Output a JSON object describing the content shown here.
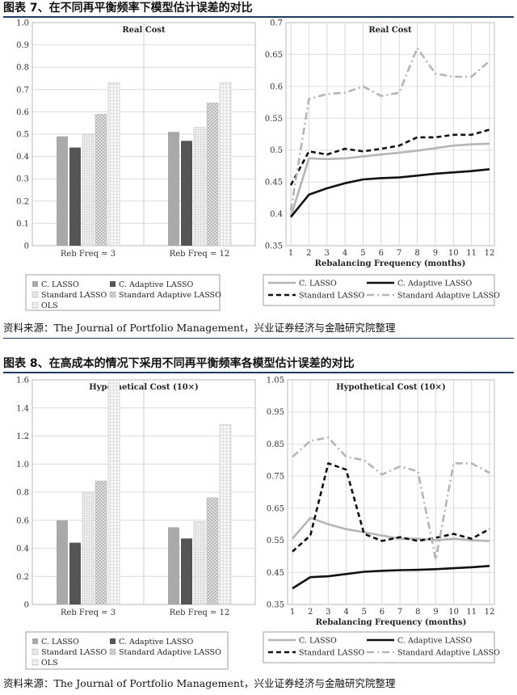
{
  "figures": [
    {
      "title": "图表 7、在不同再平衡频率下模型估计误差的对比",
      "source": "资料来源：The Journal of Portfolio Management，兴业证券经济与金融研究院整理"
    },
    {
      "title": "图表 8、在高成本的情况下采用不同再平衡频率各模型估计误差的对比",
      "source": "资料来源：The Journal of Portfolio Management，兴业证券经济与金融研究院整理"
    }
  ],
  "chart_data": [
    {
      "type": "bar",
      "title": "Real Cost",
      "categories": [
        "Reb Freq = 3",
        "Reb Freq = 12"
      ],
      "ylim": [
        0,
        1.0
      ],
      "yticks": [
        "0",
        "0.1",
        "0.2",
        "0.3",
        "0.4",
        "0.5",
        "0.6",
        "0.7",
        "0.8",
        "0.9",
        "1.0"
      ],
      "grid": true,
      "legend_position": "bottom",
      "series": [
        {
          "name": "C. LASSO",
          "values": [
            0.49,
            0.51
          ],
          "color": "#a9a9a9"
        },
        {
          "name": "C. Adaptive LASSO",
          "values": [
            0.44,
            0.47
          ],
          "color": "#5a5a5a"
        },
        {
          "name": "Standard LASSO",
          "values": [
            0.5,
            0.53
          ],
          "color": "#e2e2e2"
        },
        {
          "name": "Standard Adaptive LASSO",
          "values": [
            0.59,
            0.64
          ],
          "color": "#cfcfcf"
        },
        {
          "name": "OLS",
          "values": [
            0.73,
            0.73
          ],
          "color": "#f2f2f2"
        }
      ]
    },
    {
      "type": "line",
      "title": "Real Cost",
      "xlabel": "Rebalancing Frequency (months)",
      "x": [
        1,
        2,
        3,
        4,
        5,
        6,
        7,
        8,
        9,
        10,
        11,
        12
      ],
      "ylim": [
        0.35,
        0.7
      ],
      "yticks": [
        "0.35",
        "0.4",
        "0.45",
        "0.5",
        "0.55",
        "0.6",
        "0.65",
        "0.7"
      ],
      "grid": true,
      "legend_position": "bottom",
      "series": [
        {
          "name": "C. LASSO",
          "values": [
            0.395,
            0.487,
            0.486,
            0.487,
            0.49,
            0.493,
            0.496,
            0.499,
            0.503,
            0.507,
            0.509,
            0.51
          ],
          "color": "#b5b5b5",
          "style": "solid"
        },
        {
          "name": "C. Adaptive LASSO",
          "values": [
            0.395,
            0.43,
            0.44,
            0.448,
            0.454,
            0.456,
            0.457,
            0.46,
            0.463,
            0.465,
            0.467,
            0.47
          ],
          "color": "#111111",
          "style": "solid"
        },
        {
          "name": "Standard LASSO",
          "values": [
            0.445,
            0.498,
            0.493,
            0.502,
            0.498,
            0.502,
            0.507,
            0.52,
            0.52,
            0.524,
            0.524,
            0.532
          ],
          "color": "#111111",
          "style": "dash"
        },
        {
          "name": "Standard Adaptive LASSO",
          "values": [
            0.405,
            0.58,
            0.588,
            0.59,
            0.6,
            0.585,
            0.59,
            0.66,
            0.62,
            0.615,
            0.615,
            0.64
          ],
          "color": "#b5b5b5",
          "style": "dashdot"
        }
      ]
    },
    {
      "type": "bar",
      "title": "Hypothetical Cost (10×)",
      "categories": [
        "Reb Freq = 3",
        "Reb Freq = 12"
      ],
      "ylim": [
        0,
        1.6
      ],
      "yticks": [
        "0",
        "0.2",
        "0.4",
        "0.6",
        "0.8",
        "1.0",
        "1.2",
        "1.4",
        "1.6"
      ],
      "grid": true,
      "legend_position": "bottom",
      "series": [
        {
          "name": "C. LASSO",
          "values": [
            0.6,
            0.55
          ],
          "color": "#a9a9a9"
        },
        {
          "name": "C. Adaptive LASSO",
          "values": [
            0.44,
            0.47
          ],
          "color": "#5a5a5a"
        },
        {
          "name": "Standard LASSO",
          "values": [
            0.8,
            0.59
          ],
          "color": "#e2e2e2"
        },
        {
          "name": "Standard Adaptive LASSO",
          "values": [
            0.88,
            0.76
          ],
          "color": "#cfcfcf"
        },
        {
          "name": "OLS",
          "values": [
            1.62,
            1.28
          ],
          "color": "#f2f2f2"
        }
      ]
    },
    {
      "type": "line",
      "title": "Hypothetical Cost (10×)",
      "xlabel": "Rebalancing Frequency (months)",
      "x": [
        1,
        2,
        3,
        4,
        5,
        6,
        7,
        8,
        9,
        10,
        11,
        12
      ],
      "ylim": [
        0.35,
        1.05
      ],
      "yticks": [
        "0.35",
        "0.45",
        "0.55",
        "0.65",
        "0.75",
        "0.85",
        "0.95",
        "1.05"
      ],
      "grid": true,
      "legend_position": "bottom",
      "series": [
        {
          "name": "C. LASSO",
          "values": [
            0.555,
            0.62,
            0.6,
            0.585,
            0.575,
            0.565,
            0.555,
            0.555,
            0.55,
            0.555,
            0.55,
            0.548
          ],
          "color": "#b5b5b5",
          "style": "solid"
        },
        {
          "name": "C. Adaptive LASSO",
          "values": [
            0.4,
            0.435,
            0.438,
            0.445,
            0.452,
            0.455,
            0.457,
            0.458,
            0.46,
            0.463,
            0.466,
            0.47
          ],
          "color": "#111111",
          "style": "solid"
        },
        {
          "name": "Standard LASSO",
          "values": [
            0.515,
            0.565,
            0.79,
            0.77,
            0.57,
            0.548,
            0.56,
            0.548,
            0.558,
            0.57,
            0.555,
            0.585
          ],
          "color": "#111111",
          "style": "dash"
        },
        {
          "name": "Standard Adaptive LASSO",
          "values": [
            0.81,
            0.86,
            0.87,
            0.81,
            0.8,
            0.755,
            0.78,
            0.765,
            0.49,
            0.79,
            0.79,
            0.76
          ],
          "color": "#b5b5b5",
          "style": "dashdot"
        }
      ]
    }
  ]
}
